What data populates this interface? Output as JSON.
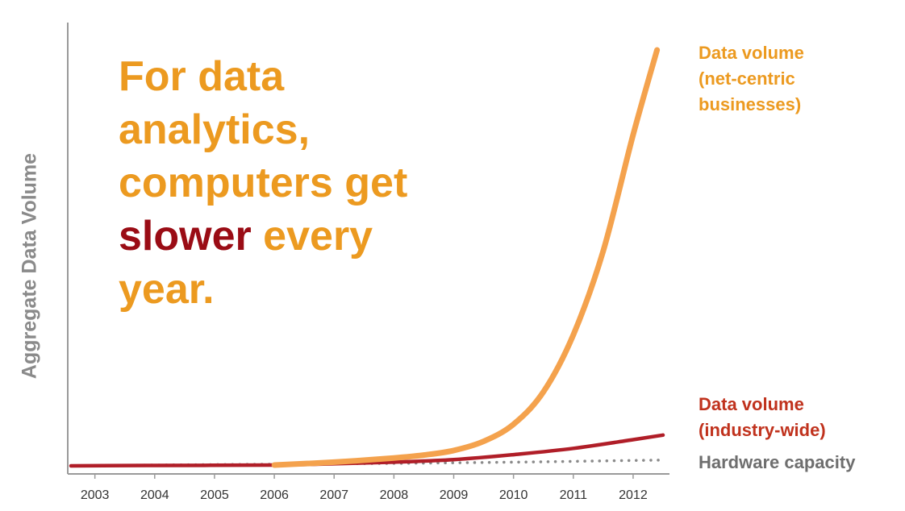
{
  "colors": {
    "orange": "#f4a24d",
    "orange_text": "#ec9a20",
    "crimson": "#b01e28",
    "dark_red": "#9a0c15",
    "label_red": "#c0321d",
    "gray": "#8a8a8a",
    "axis": "#9a9a9a"
  },
  "headline": {
    "line1": "For data",
    "line2": "analytics,",
    "line3": "computers get",
    "word_slower": "slower",
    "word_every": " every",
    "line5": "year."
  },
  "labels": {
    "net_centric": [
      "Data volume",
      "(net-centric",
      "businesses)"
    ],
    "industry": [
      "Data volume",
      "(industry-wide)"
    ],
    "hardware": "Hardware capacity"
  },
  "chart_data": {
    "type": "line",
    "ylabel": "Aggregate Data Volume",
    "x_ticks": [
      "2003",
      "2004",
      "2005",
      "2006",
      "2007",
      "2008",
      "2009",
      "2010",
      "2011",
      "2012"
    ],
    "x_range": [
      2002.6,
      2012.5
    ],
    "y_range": [
      0,
      100
    ],
    "grid": false,
    "series": [
      {
        "name": "Data volume (net-centric businesses)",
        "style": "solid",
        "x": [
          2006.0,
          2007.0,
          2008.0,
          2008.5,
          2009.0,
          2009.5,
          2010.0,
          2010.5,
          2011.0,
          2011.5,
          2012.0,
          2012.4
        ],
        "y": [
          0.2,
          0.9,
          1.9,
          2.6,
          3.7,
          5.9,
          10.0,
          17.8,
          31.5,
          51.7,
          79.6,
          100
        ]
      },
      {
        "name": "Data volume (industry-wide)",
        "style": "solid",
        "x": [
          2002.6,
          2004.0,
          2006.0,
          2007.0,
          2008.0,
          2009.0,
          2010.0,
          2011.0,
          2012.0,
          2012.5
        ],
        "y": [
          0,
          0.1,
          0.2,
          0.5,
          0.9,
          1.5,
          2.7,
          4.2,
          6.3,
          7.4
        ]
      },
      {
        "name": "Hardware capacity",
        "style": "dotted",
        "x": [
          2002.6,
          2004.0,
          2006.0,
          2008.0,
          2010.0,
          2012.5
        ],
        "y": [
          0,
          0.2,
          0.4,
          0.6,
          0.9,
          1.4
        ]
      }
    ]
  }
}
